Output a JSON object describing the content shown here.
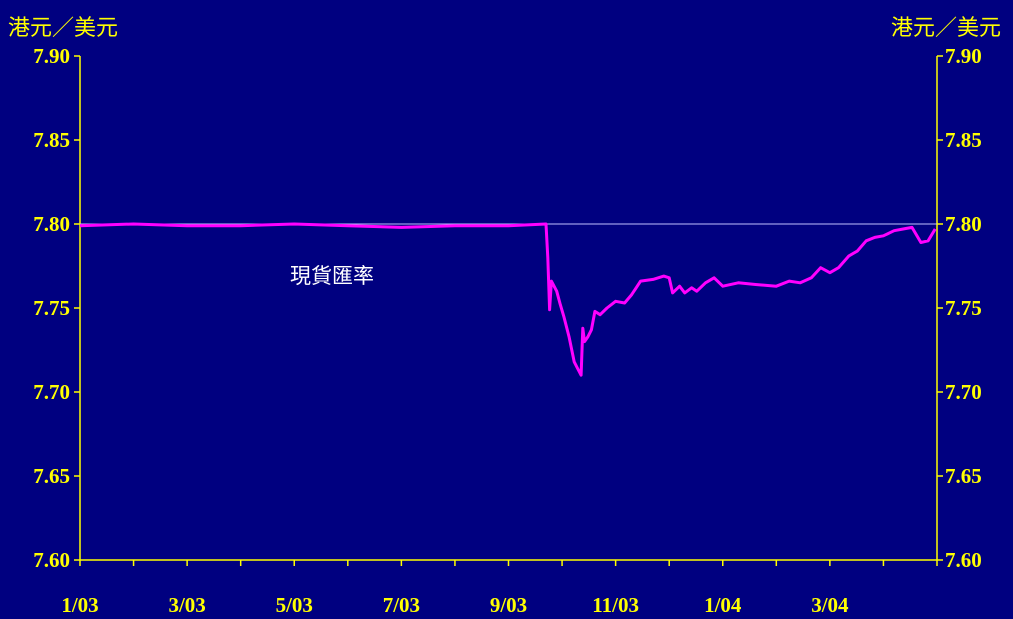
{
  "chart_data": {
    "type": "line",
    "title": "",
    "y_unit_left": "港元／美元",
    "y_unit_right": "港元／美元",
    "ylim": [
      7.6,
      7.9
    ],
    "y_ticks": [
      "7.60",
      "7.65",
      "7.70",
      "7.75",
      "7.80",
      "7.85",
      "7.90"
    ],
    "x_ticks": [
      "1/03",
      "3/03",
      "5/03",
      "7/03",
      "9/03",
      "11/03",
      "1/04",
      "3/04"
    ],
    "reference_line": {
      "value": 7.8,
      "color": "#c0c0ff"
    },
    "series": [
      {
        "name": "現貨匯率",
        "color": "#ff00ff",
        "points": [
          [
            "2003-01-01",
            7.799
          ],
          [
            "2003-02-01",
            7.8
          ],
          [
            "2003-03-01",
            7.799
          ],
          [
            "2003-04-01",
            7.799
          ],
          [
            "2003-05-01",
            7.8
          ],
          [
            "2003-06-01",
            7.799
          ],
          [
            "2003-07-01",
            7.798
          ],
          [
            "2003-08-01",
            7.799
          ],
          [
            "2003-09-01",
            7.799
          ],
          [
            "2003-09-22",
            7.8
          ],
          [
            "2003-09-23",
            7.78
          ],
          [
            "2003-09-24",
            7.749
          ],
          [
            "2003-09-25",
            7.766
          ],
          [
            "2003-09-28",
            7.76
          ],
          [
            "2003-09-30",
            7.752
          ],
          [
            "2003-10-02",
            7.745
          ],
          [
            "2003-10-05",
            7.733
          ],
          [
            "2003-10-08",
            7.718
          ],
          [
            "2003-10-10",
            7.714
          ],
          [
            "2003-10-12",
            7.71
          ],
          [
            "2003-10-13",
            7.738
          ],
          [
            "2003-10-14",
            7.73
          ],
          [
            "2003-10-16",
            7.733
          ],
          [
            "2003-10-18",
            7.737
          ],
          [
            "2003-10-20",
            7.748
          ],
          [
            "2003-10-23",
            7.746
          ],
          [
            "2003-10-27",
            7.75
          ],
          [
            "2003-11-01",
            7.754
          ],
          [
            "2003-11-06",
            7.753
          ],
          [
            "2003-11-10",
            7.758
          ],
          [
            "2003-11-15",
            7.766
          ],
          [
            "2003-11-22",
            7.767
          ],
          [
            "2003-11-28",
            7.769
          ],
          [
            "2003-12-01",
            7.768
          ],
          [
            "2003-12-03",
            7.759
          ],
          [
            "2003-12-07",
            7.763
          ],
          [
            "2003-12-10",
            7.759
          ],
          [
            "2003-12-14",
            7.762
          ],
          [
            "2003-12-17",
            7.76
          ],
          [
            "2003-12-22",
            7.765
          ],
          [
            "2003-12-27",
            7.768
          ],
          [
            "2004-01-01",
            7.763
          ],
          [
            "2004-01-10",
            7.765
          ],
          [
            "2004-01-20",
            7.764
          ],
          [
            "2004-02-01",
            7.763
          ],
          [
            "2004-02-08",
            7.766
          ],
          [
            "2004-02-14",
            7.765
          ],
          [
            "2004-02-20",
            7.768
          ],
          [
            "2004-02-25",
            7.774
          ],
          [
            "2004-03-01",
            7.771
          ],
          [
            "2004-03-06",
            7.774
          ],
          [
            "2004-03-12",
            7.781
          ],
          [
            "2004-03-17",
            7.784
          ],
          [
            "2004-03-22",
            7.79
          ],
          [
            "2004-03-27",
            7.792
          ],
          [
            "2004-04-01",
            7.793
          ],
          [
            "2004-04-07",
            7.796
          ],
          [
            "2004-04-12",
            7.797
          ],
          [
            "2004-04-17",
            7.798
          ],
          [
            "2004-04-22",
            7.789
          ],
          [
            "2004-04-26",
            7.79
          ],
          [
            "2004-04-30",
            7.797
          ]
        ]
      }
    ]
  }
}
